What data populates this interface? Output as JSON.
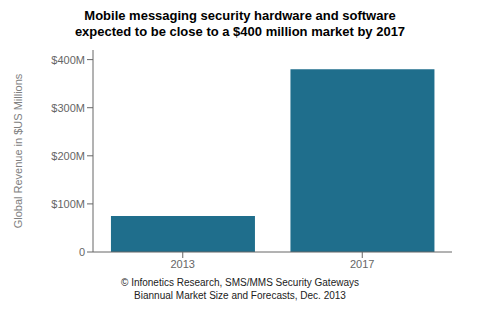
{
  "chart_data": {
    "type": "bar",
    "title": "Mobile messaging security hardware and software",
    "subtitle": "expected to be close to a $400 million market by 2017",
    "categories": [
      "2013",
      "2017"
    ],
    "values": [
      75,
      380
    ],
    "color": "#1f6e8c",
    "ylabel": "Global Revenue in $US Millions",
    "ylim": [
      0,
      420
    ],
    "yticks": [
      0,
      {
        "value": 100,
        "label": "$100M"
      },
      {
        "value": 200,
        "label": "$200M"
      },
      {
        "value": 300,
        "label": "$300M"
      },
      {
        "value": 400,
        "label": "$400M"
      }
    ],
    "grid": false,
    "annotations": [
      "© Infonetics Research, SMS/MMS Security Gateways",
      "Biannual Market Size and Forecasts, Dec. 2013"
    ]
  }
}
